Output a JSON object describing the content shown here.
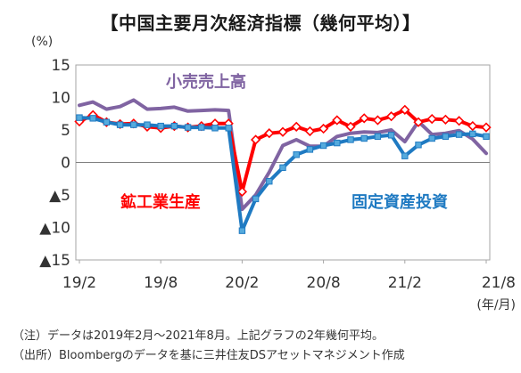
{
  "chart_data": {
    "type": "line",
    "title": "【中国主要月次経済指標（幾何平均）】",
    "y_unit_label": "(%)",
    "x_unit_label": "(年/月)",
    "ylim": [
      -15,
      15
    ],
    "y_ticks": [
      {
        "value": 15,
        "label": "15"
      },
      {
        "value": 10,
        "label": "10"
      },
      {
        "value": 5,
        "label": "5"
      },
      {
        "value": 0,
        "label": "0"
      },
      {
        "value": -5,
        "label": "▲5"
      },
      {
        "value": -10,
        "label": "▲10"
      },
      {
        "value": -15,
        "label": "▲15"
      }
    ],
    "x_tick_labels": [
      "19/2",
      "19/8",
      "20/2",
      "20/8",
      "21/2",
      "21/8"
    ],
    "x_tick_index": [
      0,
      6,
      12,
      18,
      24,
      30
    ],
    "x": [
      "19/2",
      "19/3",
      "19/4",
      "19/5",
      "19/6",
      "19/7",
      "19/8",
      "19/9",
      "19/10",
      "19/11",
      "19/12",
      "20/1",
      "20/2",
      "20/3",
      "20/4",
      "20/5",
      "20/6",
      "20/7",
      "20/8",
      "20/9",
      "20/10",
      "20/11",
      "20/12",
      "21/1",
      "21/2",
      "21/3",
      "21/4",
      "21/5",
      "21/6",
      "21/7",
      "21/8"
    ],
    "series": [
      {
        "name": "小売売上高",
        "color": "#8064a2",
        "marker": "none",
        "values": [
          8.8,
          9.3,
          8.2,
          8.6,
          9.6,
          8.2,
          8.3,
          8.5,
          7.9,
          8.0,
          8.1,
          8.0,
          -7.2,
          -5.0,
          -1.5,
          2.6,
          3.5,
          2.5,
          2.5,
          4.0,
          4.5,
          4.7,
          4.6,
          5.0,
          3.2,
          6.3,
          4.3,
          4.5,
          4.9,
          3.6,
          1.4
        ]
      },
      {
        "name": "鉱工業生産",
        "color": "#ff0000",
        "marker": "diamond",
        "values": [
          6.3,
          7.3,
          6.2,
          5.9,
          6.0,
          5.5,
          5.3,
          5.6,
          5.4,
          5.6,
          6.0,
          6.0,
          -4.5,
          3.5,
          4.5,
          4.7,
          5.5,
          4.8,
          5.2,
          6.5,
          5.5,
          6.8,
          6.5,
          7.1,
          8.1,
          6.2,
          6.7,
          6.6,
          6.4,
          5.6,
          5.4
        ]
      },
      {
        "name": "固定資産投資",
        "color": "#1f7ac2",
        "marker": "square",
        "values": [
          6.9,
          6.8,
          6.2,
          5.8,
          5.8,
          5.8,
          5.6,
          5.6,
          5.4,
          5.4,
          5.3,
          5.3,
          -10.5,
          -5.6,
          -2.9,
          -0.8,
          1.2,
          2.0,
          2.6,
          3.0,
          3.5,
          3.7,
          4.0,
          4.2,
          1.0,
          2.7,
          3.7,
          4.0,
          4.3,
          4.4,
          4.0
        ]
      }
    ],
    "series_label_positions": [
      "upper-middle",
      "lower-left",
      "lower-right"
    ],
    "grid": false,
    "zero_line": true
  },
  "notes": [
    "（注）データは2019年2月～2021年8月。上記グラフの2年幾何平均。",
    "（出所）Bloombergのデータを基に三井住友DSアセットマネジメント作成"
  ]
}
